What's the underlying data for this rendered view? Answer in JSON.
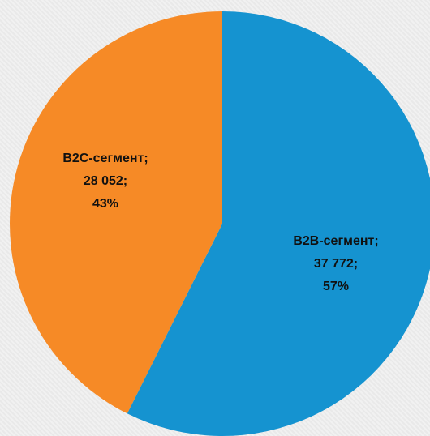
{
  "chart_data": {
    "type": "pie",
    "title": "",
    "slices": [
      {
        "label": "B2B-сегмент;",
        "value_text": "37 772;",
        "percent_text": "57%",
        "value": 37772,
        "percent": 57,
        "color": "#1593d0"
      },
      {
        "label": "B2C-сегмент;",
        "value_text": "28 052;",
        "percent_text": "43%",
        "value": 28052,
        "percent": 43,
        "color": "#f68a26"
      }
    ],
    "start_angle_deg": 0,
    "direction": "clockwise",
    "legend": "none"
  }
}
